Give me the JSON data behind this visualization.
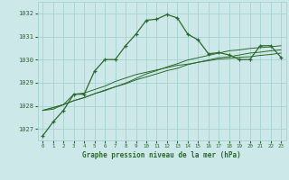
{
  "title": "Graphe pression niveau de la mer (hPa)",
  "bg_color": "#cce8e8",
  "plot_bg_color": "#cce8e8",
  "grid_color": "#9fcfcf",
  "line_color": "#2d6a2d",
  "xlim": [
    -0.5,
    23.5
  ],
  "ylim": [
    1026.5,
    1032.5
  ],
  "yticks": [
    1027,
    1028,
    1029,
    1030,
    1031,
    1032
  ],
  "xticks": [
    0,
    1,
    2,
    3,
    4,
    5,
    6,
    7,
    8,
    9,
    10,
    11,
    12,
    13,
    14,
    15,
    16,
    17,
    18,
    19,
    20,
    21,
    22,
    23
  ],
  "series1": [
    1026.7,
    1027.3,
    1027.8,
    1028.5,
    1028.5,
    1029.5,
    1030.0,
    1030.0,
    1030.6,
    1031.1,
    1031.7,
    1031.75,
    1031.95,
    1031.8,
    1031.1,
    1030.85,
    1030.25,
    1030.3,
    1030.2,
    1030.0,
    1030.0,
    1030.6,
    1030.6,
    1030.1
  ],
  "series2": [
    1027.8,
    1027.85,
    1028.05,
    1028.5,
    1028.55,
    1028.7,
    1028.85,
    1029.05,
    1029.2,
    1029.35,
    1029.45,
    1029.55,
    1029.65,
    1029.75,
    1029.8,
    1029.88,
    1029.95,
    1030.02,
    1030.05,
    1030.1,
    1030.12,
    1030.18,
    1030.22,
    1030.28
  ],
  "series3": [
    1027.8,
    1027.92,
    1028.05,
    1028.22,
    1028.35,
    1028.52,
    1028.65,
    1028.82,
    1028.95,
    1029.12,
    1029.25,
    1029.38,
    1029.52,
    1029.62,
    1029.78,
    1029.88,
    1029.98,
    1030.08,
    1030.12,
    1030.2,
    1030.28,
    1030.32,
    1030.38,
    1030.42
  ],
  "series4": [
    1027.8,
    1027.92,
    1028.05,
    1028.22,
    1028.35,
    1028.52,
    1028.68,
    1028.82,
    1028.98,
    1029.18,
    1029.38,
    1029.52,
    1029.68,
    1029.82,
    1029.98,
    1030.08,
    1030.18,
    1030.28,
    1030.38,
    1030.42,
    1030.48,
    1030.52,
    1030.55,
    1030.6
  ]
}
